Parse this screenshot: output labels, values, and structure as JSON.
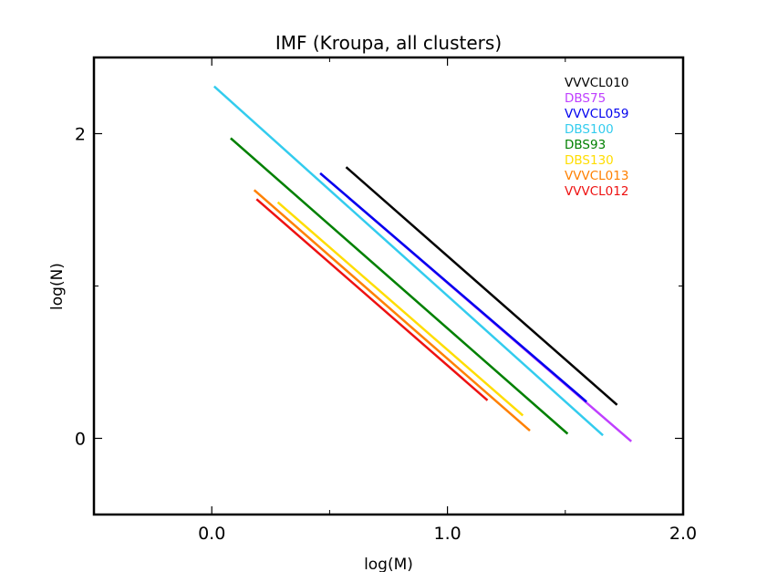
{
  "chart_data": {
    "type": "line",
    "title": "IMF (Kroupa, all clusters)",
    "xlabel": "log(M)",
    "ylabel": "log(N)",
    "xlim": [
      -0.5,
      2.0
    ],
    "ylim": [
      -0.5,
      2.5
    ],
    "xticks": [
      0.0,
      1.0,
      2.0
    ],
    "xtick_labels": [
      "0.0",
      "1.0",
      "2.0"
    ],
    "yticks": [
      0,
      2
    ],
    "ytick_labels": [
      "0",
      "2"
    ],
    "minor_ticks": {
      "x": [
        0.5,
        1.5
      ],
      "y": [
        1
      ]
    },
    "grid": false,
    "legend_position": "top-right",
    "series": [
      {
        "name": "VVVCL010",
        "color": "#000000",
        "x": [
          0.57,
          1.72
        ],
        "y": [
          1.78,
          0.22
        ]
      },
      {
        "name": "DBS75",
        "color": "#bf3fff",
        "x": [
          0.46,
          1.78
        ],
        "y": [
          1.74,
          -0.02
        ]
      },
      {
        "name": "VVVCL059",
        "color": "#0000ee",
        "x": [
          0.46,
          1.59
        ],
        "y": [
          1.74,
          0.24
        ]
      },
      {
        "name": "DBS100",
        "color": "#33ccee",
        "x": [
          0.01,
          1.66
        ],
        "y": [
          2.31,
          0.02
        ]
      },
      {
        "name": "DBS93",
        "color": "#008000",
        "x": [
          0.08,
          1.51
        ],
        "y": [
          1.97,
          0.03
        ]
      },
      {
        "name": "DBS130",
        "color": "#ffdd00",
        "x": [
          0.28,
          1.32
        ],
        "y": [
          1.55,
          0.15
        ]
      },
      {
        "name": "VVVCL013",
        "color": "#ff8000",
        "x": [
          0.18,
          1.35
        ],
        "y": [
          1.63,
          0.05
        ]
      },
      {
        "name": "VVVCL012",
        "color": "#ee1111",
        "x": [
          0.19,
          1.17
        ],
        "y": [
          1.57,
          0.25
        ]
      }
    ]
  }
}
